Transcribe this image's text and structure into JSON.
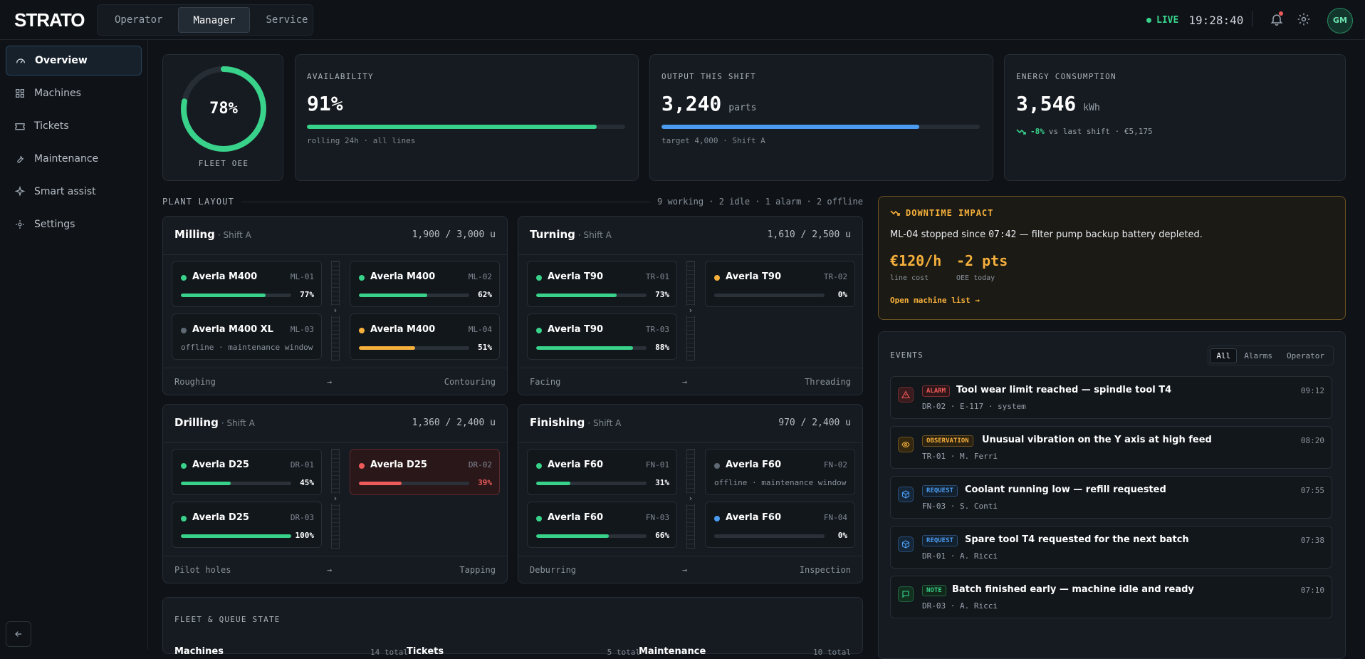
{
  "app": {
    "logo": "STRATO"
  },
  "modes": [
    {
      "label": "Operator"
    },
    {
      "label": "Manager"
    },
    {
      "label": "Service"
    }
  ],
  "status": {
    "live_label": "LIVE",
    "clock": "19:28:40",
    "avatar_initials": "GM"
  },
  "sidebar": {
    "items": [
      {
        "label": "Overview",
        "icon": "gauge-icon",
        "active": true
      },
      {
        "label": "Machines",
        "icon": "grid-icon"
      },
      {
        "label": "Tickets",
        "icon": "ticket-icon"
      },
      {
        "label": "Maintenance",
        "icon": "wrench-icon"
      },
      {
        "label": "Smart assist",
        "icon": "sparkle-icon"
      },
      {
        "label": "Settings",
        "icon": "gear-icon"
      }
    ]
  },
  "kpis": {
    "oee": {
      "value": "78%",
      "fraction": 0.78,
      "label": "FLEET OEE"
    },
    "availability": {
      "title": "AVAILABILITY",
      "value": "91%",
      "fraction": 0.91,
      "sub": "rolling 24h · all lines"
    },
    "output": {
      "title": "OUTPUT THIS SHIFT",
      "value": "3,240",
      "unit": "parts",
      "fraction": 0.81,
      "sub": "target 4,000 · Shift A"
    },
    "energy": {
      "title": "ENERGY CONSUMPTION",
      "value": "3,546",
      "unit": "kWh",
      "delta": "-8%",
      "delta_text": "vs last shift · €5,175"
    }
  },
  "layout": {
    "title": "PLANT LAYOUT",
    "summary": "9 working · 2 idle · 1 alarm · 2 offline",
    "cells": [
      {
        "name": "Milling",
        "shift": "· Shift A",
        "count": "1,900 / 3,000 u",
        "from": "Roughing",
        "to": "Contouring",
        "machines": [
          {
            "name": "Averla M400",
            "id": "ML-01",
            "pct": "77%",
            "value": 0.77,
            "state": "working"
          },
          {
            "name": "Averla M400",
            "id": "ML-02",
            "pct": "62%",
            "value": 0.62,
            "state": "working"
          },
          {
            "name": "Averla M400 XL",
            "id": "ML-03",
            "note": "offline · maintenance window",
            "state": "offline"
          },
          {
            "name": "Averla M400",
            "id": "ML-04",
            "pct": "51%",
            "value": 0.51,
            "state": "idle"
          }
        ]
      },
      {
        "name": "Turning",
        "shift": "· Shift A",
        "count": "1,610 / 2,500 u",
        "from": "Facing",
        "to": "Threading",
        "machines": [
          {
            "name": "Averla T90",
            "id": "TR-01",
            "pct": "73%",
            "value": 0.73,
            "state": "working"
          },
          {
            "name": "Averla T90",
            "id": "TR-02",
            "pct": "0%",
            "value": 0,
            "state": "idle"
          },
          {
            "name": "Averla T90",
            "id": "TR-03",
            "pct": "88%",
            "value": 0.88,
            "state": "working"
          }
        ]
      },
      {
        "name": "Drilling",
        "shift": "· Shift A",
        "count": "1,360 / 2,400 u",
        "from": "Pilot holes",
        "to": "Tapping",
        "machines": [
          {
            "name": "Averla D25",
            "id": "DR-01",
            "pct": "45%",
            "value": 0.45,
            "state": "working"
          },
          {
            "name": "Averla D25",
            "id": "DR-02",
            "pct": "39%",
            "value": 0.39,
            "state": "alarm"
          },
          {
            "name": "Averla D25",
            "id": "DR-03",
            "pct": "100%",
            "value": 1.0,
            "state": "working"
          }
        ]
      },
      {
        "name": "Finishing",
        "shift": "· Shift A",
        "count": "970 / 2,400 u",
        "from": "Deburring",
        "to": "Inspection",
        "machines": [
          {
            "name": "Averla F60",
            "id": "FN-01",
            "pct": "31%",
            "value": 0.31,
            "state": "working"
          },
          {
            "name": "Averla F60",
            "id": "FN-02",
            "note": "offline · maintenance window",
            "state": "offline"
          },
          {
            "name": "Averla F60",
            "id": "FN-03",
            "pct": "66%",
            "value": 0.66,
            "state": "working"
          },
          {
            "name": "Averla F60",
            "id": "FN-04",
            "pct": "0%",
            "value": 0,
            "state": "ready"
          }
        ]
      }
    ]
  },
  "impact": {
    "title": "DOWNTIME IMPACT",
    "text_pre": "ML-04 stopped since",
    "time": "07:42",
    "text_post": "— filter pump backup battery depleted.",
    "cost": "€120/h",
    "cost_label": "line cost",
    "oee": "-2 pts",
    "oee_label": "OEE today",
    "link": "Open machine list →"
  },
  "events": {
    "title": "EVENTS",
    "filters": [
      "All",
      "Alarms",
      "Operator"
    ],
    "items": [
      {
        "badge": "ALARM",
        "kind": "alarm",
        "title": "Tool wear limit reached — spindle tool T4",
        "meta": "DR-02 · E-117 · system",
        "time": "09:12"
      },
      {
        "badge": "OBSERVATION",
        "kind": "observation",
        "title": "Unusual vibration on the Y axis at high feed",
        "meta": "TR-01 · M. Ferri",
        "time": "08:20"
      },
      {
        "badge": "REQUEST",
        "kind": "request",
        "title": "Coolant running low — refill requested",
        "meta": "FN-03 · S. Conti",
        "time": "07:55"
      },
      {
        "badge": "REQUEST",
        "kind": "request",
        "title": "Spare tool T4 requested for the next batch",
        "meta": "DR-01 · A. Ricci",
        "time": "07:38"
      },
      {
        "badge": "NOTE",
        "kind": "note",
        "title": "Batch finished early — machine idle and ready",
        "meta": "DR-03 · A. Ricci",
        "time": "07:10"
      }
    ]
  },
  "fleet": {
    "title": "FLEET & QUEUE STATE",
    "cols": [
      {
        "label": "Machines",
        "count": "14 total"
      },
      {
        "label": "Tickets",
        "count": "5 total"
      },
      {
        "label": "Maintenance",
        "count": "10 total"
      }
    ]
  },
  "colors": {
    "working": "#38d28a",
    "idle": "#f5b03c",
    "alarm": "#ef5a5a",
    "offline": "#5f6973",
    "ready": "#4b9cf0",
    "accent": "#f5b03c"
  }
}
